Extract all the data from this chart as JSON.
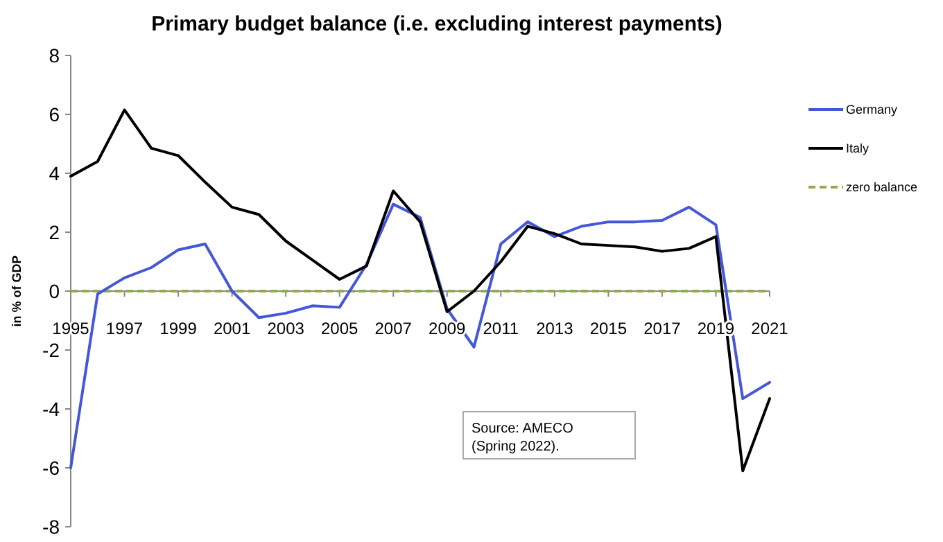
{
  "chart_data": {
    "type": "line",
    "title": "Primary budget balance (i.e. excluding interest payments)",
    "ylabel": "in % of GDP",
    "x": [
      1995,
      1996,
      1997,
      1998,
      1999,
      2000,
      2001,
      2002,
      2003,
      2004,
      2005,
      2006,
      2007,
      2008,
      2009,
      2010,
      2011,
      2012,
      2013,
      2014,
      2015,
      2016,
      2017,
      2018,
      2019,
      2020,
      2021
    ],
    "series": [
      {
        "name": "Germany",
        "color": "#4457d9",
        "values": [
          -6.0,
          -0.1,
          0.45,
          0.8,
          1.4,
          1.6,
          0.0,
          -0.9,
          -0.75,
          -0.5,
          -0.55,
          0.9,
          2.95,
          2.5,
          -0.6,
          -1.9,
          1.6,
          2.35,
          1.85,
          2.2,
          2.35,
          2.35,
          2.4,
          2.85,
          2.25,
          -3.65,
          -3.1
        ]
      },
      {
        "name": "Italy",
        "color": "#000000",
        "values": [
          3.9,
          4.4,
          6.15,
          4.85,
          4.6,
          3.7,
          2.85,
          2.6,
          1.7,
          1.05,
          0.4,
          0.85,
          3.4,
          2.35,
          -0.7,
          0.0,
          1.0,
          2.2,
          1.95,
          1.6,
          1.55,
          1.5,
          1.35,
          1.45,
          1.85,
          -6.1,
          -3.65
        ]
      }
    ],
    "ref_lines": [
      {
        "axis": "y",
        "value": 0,
        "label": "zero balance",
        "color": "#8fae4a",
        "line_style": "dashed"
      }
    ],
    "xlim": [
      1995,
      2021
    ],
    "xticks": [
      1995,
      1997,
      1999,
      2001,
      2003,
      2005,
      2007,
      2009,
      2011,
      2013,
      2015,
      2017,
      2019,
      2021
    ],
    "ylim": [
      -8,
      8
    ],
    "yticks": [
      -8,
      -6,
      -4,
      -2,
      0,
      2,
      4,
      6,
      8
    ],
    "annotations": [
      "Source: AMECO\n(Spring 2022)."
    ],
    "legend": "right",
    "grid": false,
    "marker": "none",
    "line_style": "solid"
  }
}
